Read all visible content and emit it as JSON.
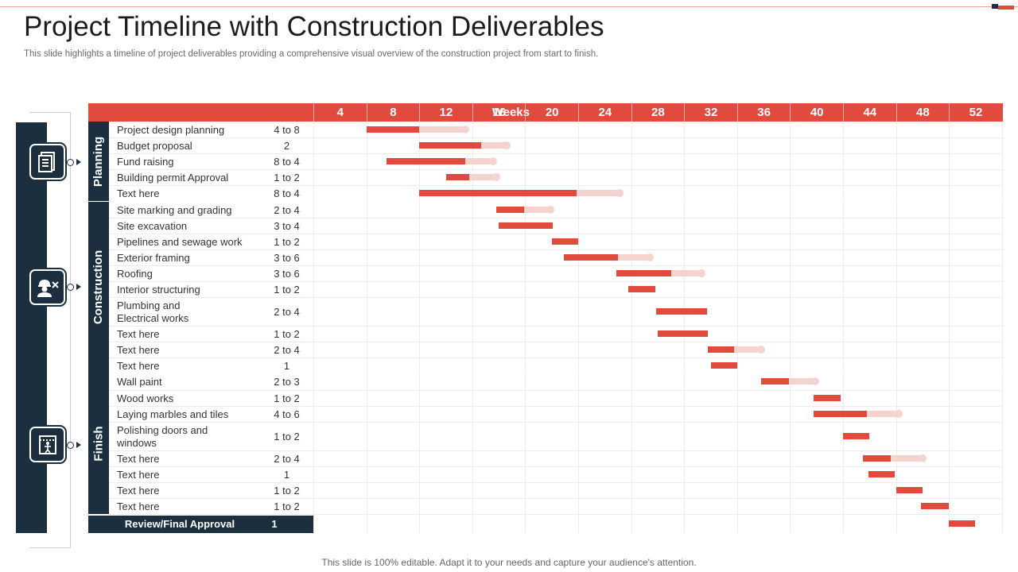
{
  "header": {
    "title": "Project Timeline with Construction Deliverables",
    "subtitle": "This slide highlights a timeline of project deliverables providing a comprehensive visual overview of the construction project from start to finish."
  },
  "footer": {
    "note": "This slide is 100% editable. Adapt it to your needs and capture your audience's attention."
  },
  "colors": {
    "accent": "#e14b3d",
    "accent_light": "#f5d3cf",
    "navy": "#1b2f3f"
  },
  "table": {
    "weeks_label": "Weeks",
    "week_columns": [
      "4",
      "8",
      "12",
      "16",
      "20",
      "24",
      "28",
      "32",
      "36",
      "40",
      "44",
      "48",
      "52"
    ]
  },
  "phases": [
    {
      "name": "Planning",
      "icon": "document-list-icon",
      "tasks": [
        {
          "name": "Project design planning",
          "duration": "4 to 8",
          "start": 4.0,
          "end": 8.0,
          "ext_end": 11.5
        },
        {
          "name": "Budget proposal",
          "duration": "2",
          "start": 8.0,
          "end": 12.7,
          "ext_end": 14.6
        },
        {
          "name": "Fund raising",
          "duration": "8 to 4",
          "start": 5.5,
          "end": 11.5,
          "ext_end": 13.6
        },
        {
          "name": "Building permit Approval",
          "duration": "1 to 2",
          "start": 10.0,
          "end": 11.8,
          "ext_end": 13.8
        },
        {
          "name": "Text here",
          "duration": "8 to 4",
          "start": 8.0,
          "end": 19.9,
          "ext_end": 23.1
        }
      ]
    },
    {
      "name": "Construction",
      "icon": "worker-tools-icon",
      "tasks": [
        {
          "name": "Site marking and grading",
          "duration": "2 to 4",
          "start": 13.8,
          "end": 15.9,
          "ext_end": 17.9
        },
        {
          "name": "Site excavation",
          "duration": "3 to 4",
          "start": 14.0,
          "end": 18.1,
          "ext_end": null
        },
        {
          "name": "Pipelines and sewage work",
          "duration": "1 to 2",
          "start": 18.0,
          "end": 20.0,
          "ext_end": null
        },
        {
          "name": "Exterior framing",
          "duration": "3 to 6",
          "start": 18.9,
          "end": 23.0,
          "ext_end": 25.4
        },
        {
          "name": "Roofing",
          "duration": "3 to 6",
          "start": 22.9,
          "end": 27.0,
          "ext_end": 29.3
        },
        {
          "name": "Interior structuring",
          "duration": "1 to 2",
          "start": 23.8,
          "end": 25.8,
          "ext_end": null
        },
        {
          "name": "Plumbing and Electrical works",
          "name_line1": "Plumbing and",
          "name_line2": "Electrical works",
          "duration": "2 to 4",
          "start": 25.9,
          "end": 29.7,
          "ext_end": null
        },
        {
          "name": "Text here",
          "duration": "1 to 2",
          "start": 26.0,
          "end": 29.8,
          "ext_end": null
        },
        {
          "name": "Text here",
          "duration": "2 to 4",
          "start": 29.8,
          "end": 31.8,
          "ext_end": 33.8
        },
        {
          "name": "Text here",
          "duration": "1",
          "start": 30.0,
          "end": 32.0,
          "ext_end": null
        }
      ]
    },
    {
      "name": "Finish",
      "icon": "door-window-icon",
      "tasks": [
        {
          "name": "Wall paint",
          "duration": "2 to 3",
          "start": 33.8,
          "end": 35.9,
          "ext_end": 37.9
        },
        {
          "name": "Wood works",
          "duration": "1 to 2",
          "start": 37.8,
          "end": 39.8,
          "ext_end": null
        },
        {
          "name": "Laying marbles and tiles",
          "duration": "4 to 6",
          "start": 37.8,
          "end": 41.8,
          "ext_end": 44.2
        },
        {
          "name": "Polishing doors and windows",
          "name_line1": "Polishing doors and",
          "name_line2": "windows",
          "duration": "1 to 2",
          "start": 40.0,
          "end": 42.0,
          "ext_end": null
        },
        {
          "name": "Text here",
          "duration": "2 to 4",
          "start": 41.5,
          "end": 43.6,
          "ext_end": 46.0
        },
        {
          "name": "Text here",
          "duration": "1",
          "start": 41.9,
          "end": 43.9,
          "ext_end": null
        },
        {
          "name": "Text here",
          "duration": "1 to 2",
          "start": 44.0,
          "end": 46.0,
          "ext_end": null
        },
        {
          "name": "Text here",
          "duration": "1 to 2",
          "start": 45.9,
          "end": 48.0,
          "ext_end": null
        }
      ]
    }
  ],
  "review": {
    "label": "Review/Final Approval",
    "duration": "1",
    "start": 48.0,
    "end": 50.0
  }
}
